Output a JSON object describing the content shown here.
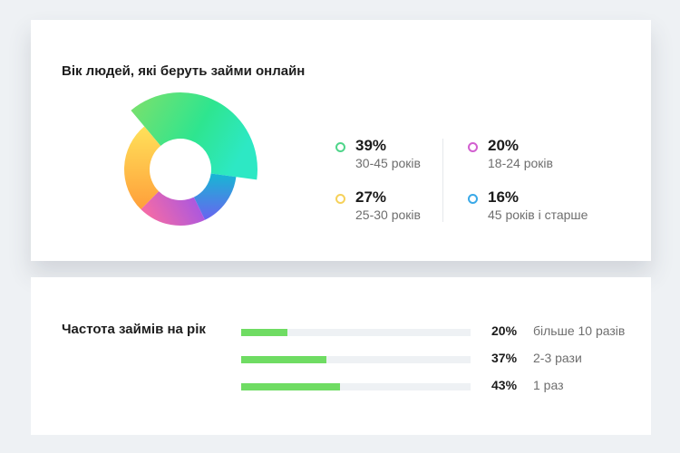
{
  "age_card": {
    "title": "Вік людей, які беруть займи онлайн"
  },
  "frequency_card": {
    "title": "Частота займів на рік"
  },
  "chart_data": [
    {
      "type": "pie",
      "title": "Вік людей, які беруть займи онлайн",
      "slices": [
        {
          "value": "39%",
          "label": "30-45 років",
          "percent": 39,
          "color": "#2ee58f"
        },
        {
          "value": "20%",
          "label": "18-24 років",
          "percent": 20,
          "color": "#e25fc0"
        },
        {
          "value": "27%",
          "label": "25-30 років",
          "percent": 27,
          "color": "#ffc83f"
        },
        {
          "value": "16%",
          "label": "45 років і старше",
          "percent": 16,
          "color": "#3aa9e8"
        }
      ]
    },
    {
      "type": "bar",
      "title": "Частота займів на рік",
      "bars": [
        {
          "value": "20%",
          "label": "більше 10 разів",
          "percent": 20
        },
        {
          "value": "37%",
          "label": "2-3 рази",
          "percent": 37
        },
        {
          "value": "43%",
          "label": "1 раз",
          "percent": 43
        }
      ],
      "bar_color": "#6fdc63",
      "track_color": "#eef1f4"
    }
  ]
}
